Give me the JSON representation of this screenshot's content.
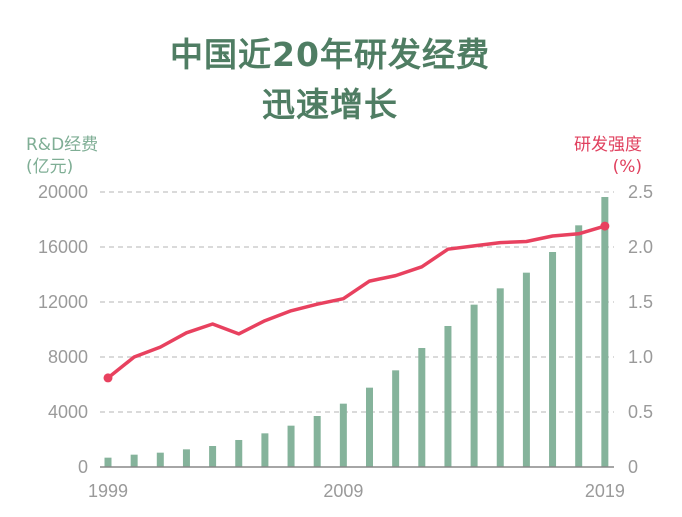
{
  "chart_data": {
    "type": "bar+line",
    "title": [
      "中国近20年研发经费",
      "迅速增长"
    ],
    "ylabel_left": [
      "R&D经费",
      "(亿元)"
    ],
    "ylabel_right": [
      "研发强度",
      "(%)"
    ],
    "categories": [
      "1999",
      "2000",
      "2001",
      "2002",
      "2003",
      "2004",
      "2005",
      "2006",
      "2007",
      "2008",
      "2009",
      "2010",
      "2011",
      "2012",
      "2013",
      "2014",
      "2015",
      "2016",
      "2017",
      "2018"
    ],
    "x_tick_labels": [
      {
        "label": "1999",
        "at": "1999"
      },
      {
        "label": "2009",
        "at": "2008"
      },
      {
        "label": "2019",
        "at": "2018"
      }
    ],
    "series": [
      {
        "type": "bar",
        "axis": "left",
        "color": "#85b39b",
        "values": [
          679,
          897,
          1042,
          1285,
          1527,
          1964,
          2448,
          3006,
          3709,
          4606,
          5770,
          7030,
          8655,
          10255,
          11806,
          12994,
          14133,
          15636,
          17576,
          19636
        ]
      },
      {
        "type": "line",
        "axis": "right",
        "color": "#e8415f",
        "values": [
          0.81,
          1.0,
          1.09,
          1.22,
          1.3,
          1.21,
          1.33,
          1.42,
          1.48,
          1.53,
          1.69,
          1.74,
          1.82,
          1.98,
          2.01,
          2.04,
          2.05,
          2.1,
          2.12,
          2.19
        ]
      }
    ],
    "ylim_left": [
      0,
      20000
    ],
    "yticks_left": [
      "0",
      "4000",
      "8000",
      "12000",
      "16000",
      "20000"
    ],
    "ylim_right": [
      0,
      2.5
    ],
    "yticks_right": [
      "0",
      "0.5",
      "1.0",
      "1.5",
      "2.0",
      "2.5"
    ],
    "grid": "horizontal dashed",
    "title_color": "#4f7d63"
  }
}
